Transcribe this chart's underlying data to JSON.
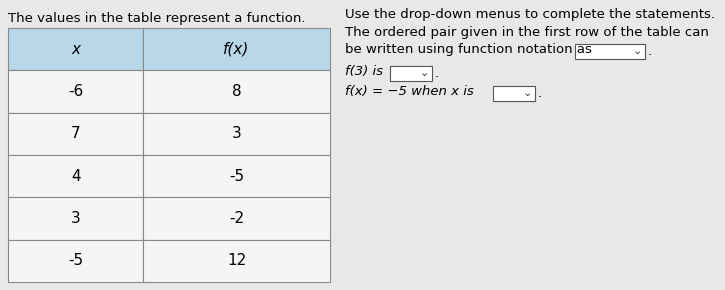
{
  "title_left": "The values in the table represent a function.",
  "table_headers": [
    "x",
    "f(x)"
  ],
  "table_data": [
    [
      "-6",
      "8"
    ],
    [
      "7",
      "3"
    ],
    [
      "4",
      "-5"
    ],
    [
      "3",
      "-2"
    ],
    [
      "-5",
      "12"
    ]
  ],
  "header_bg": "#b8d8ea",
  "cell_bg": "#f5f5f5",
  "border_color": "#888888",
  "right_title": "Use the drop-down menus to complete the statements.",
  "right_line1": "The ordered pair given in the first row of the table can",
  "right_line2": "be written using function notation as",
  "right_line3": "f(3) is",
  "right_line4": "f(x) = −5 when x is",
  "font_size_title": 9.5,
  "font_size_text": 9.5,
  "font_size_table": 11,
  "background_color": "#e8e8e8"
}
